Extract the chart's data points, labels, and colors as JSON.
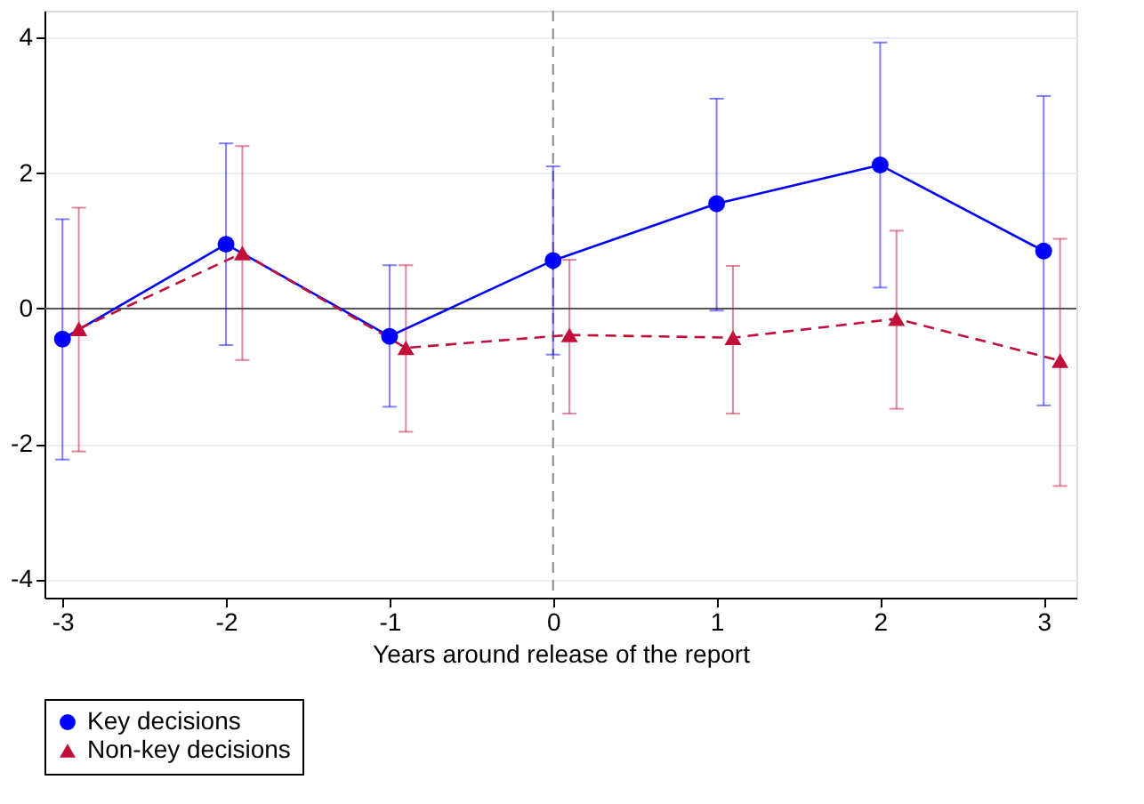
{
  "chart_data": {
    "type": "line",
    "xlabel": "Years around release of the report",
    "xlim": [
      -3.11,
      3.2
    ],
    "xticks": [
      -3,
      -2,
      -1,
      0,
      1,
      2,
      3
    ],
    "ylim": [
      -4.27,
      4.4
    ],
    "yticks": [
      -4,
      -2,
      0,
      2,
      4
    ],
    "grid": "y",
    "legend": "bottom",
    "ref_lines": [
      {
        "axis": "y",
        "value": 0,
        "color": "#555555",
        "line_style": "solid"
      },
      {
        "axis": "x",
        "value": 0,
        "color": "#888888",
        "line_style": "dashed"
      }
    ],
    "series": [
      {
        "name": "Key decisions",
        "color": "#0000ff",
        "marker": "circle",
        "line_style": "solid",
        "x": [
          -3,
          -2,
          -1,
          0,
          1,
          2,
          3
        ],
        "values": [
          -0.45,
          0.95,
          -0.41,
          0.71,
          1.55,
          2.12,
          0.85
        ],
        "errors": [
          [
            -2.23,
            1.32
          ],
          [
            -0.54,
            2.44
          ],
          [
            -1.45,
            0.64
          ],
          [
            -0.68,
            2.1
          ],
          [
            -0.03,
            3.1
          ],
          [
            0.31,
            3.93
          ],
          [
            -1.43,
            3.14
          ]
        ]
      },
      {
        "name": "Non-key decisions",
        "color": "#c0103a",
        "marker": "triangle",
        "line_style": "dashed",
        "x": [
          -2.9,
          -1.9,
          -0.9,
          0.1,
          1.1,
          2.1,
          3.1
        ],
        "values": [
          -0.3,
          0.82,
          -0.58,
          -0.39,
          -0.43,
          -0.15,
          -0.77
        ],
        "errors": [
          [
            -2.11,
            1.49
          ],
          [
            -0.76,
            2.4
          ],
          [
            -1.82,
            0.64
          ],
          [
            -1.55,
            0.72
          ],
          [
            -1.55,
            0.63
          ],
          [
            -1.48,
            1.15
          ],
          [
            -2.62,
            1.03
          ]
        ]
      }
    ]
  }
}
